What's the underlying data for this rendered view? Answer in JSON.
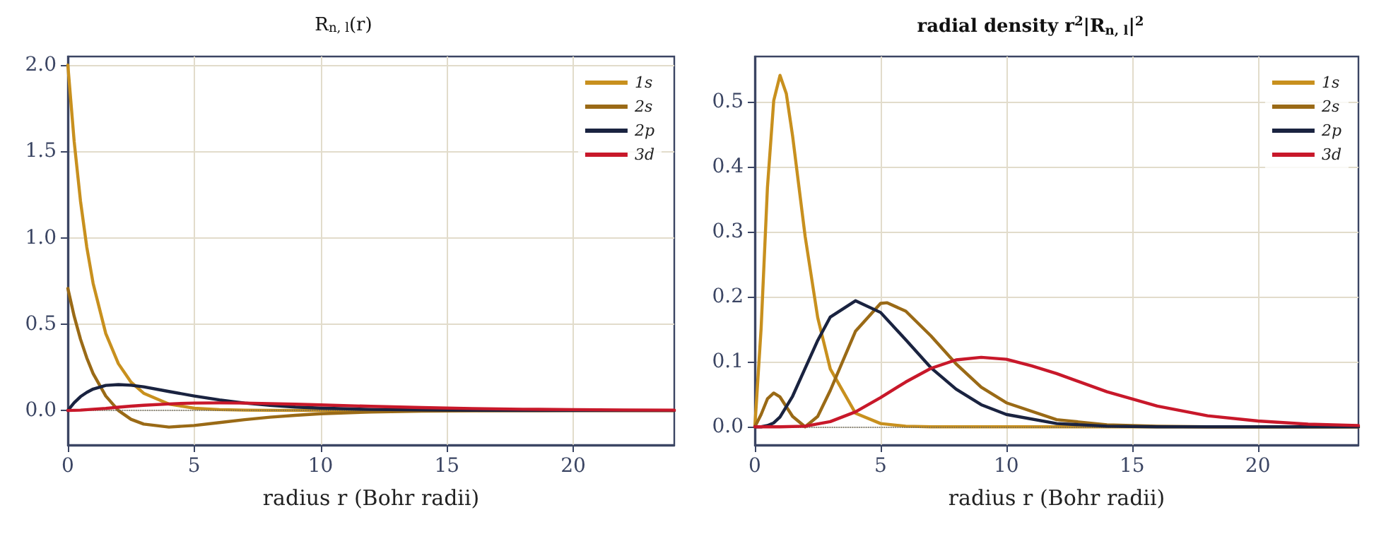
{
  "chart_data": [
    {
      "type": "line",
      "title": "R$_{n, l}$(r)",
      "xlabel": "radius r (Bohr radii)",
      "xlim": [
        0,
        24
      ],
      "xticks": [
        0,
        5,
        10,
        15,
        20
      ],
      "ylim": [
        -0.2,
        2.05
      ],
      "yticks": [
        {
          "value": 0,
          "label": "0.0"
        },
        0.5,
        {
          "value": 1,
          "label": "1.0"
        },
        1.5,
        {
          "value": 2,
          "label": "2.0"
        }
      ],
      "grid": true,
      "legend": "top right",
      "marker": "none",
      "line_style": "solid",
      "ref_lines": [
        {
          "axis": "y",
          "value": 0,
          "color": "#666666",
          "line_style": "dotted"
        }
      ],
      "series": [
        {
          "name": "1s",
          "color": "#c8901e",
          "x": [
            0,
            0.25,
            0.5,
            0.75,
            1,
            1.5,
            2,
            2.5,
            3,
            4,
            5,
            6,
            7,
            8,
            10,
            12,
            16,
            20,
            24
          ],
          "values": [
            2,
            1.558,
            1.213,
            0.945,
            0.736,
            0.446,
            0.271,
            0.164,
            0.1,
            0.037,
            0.013,
            0.005,
            0.002,
            0.001,
            0,
            0,
            0,
            0,
            0
          ]
        },
        {
          "name": "2s",
          "color": "#9a6a16",
          "x": [
            0,
            0.25,
            0.5,
            0.75,
            1,
            1.5,
            2,
            2.5,
            3,
            4,
            5,
            6,
            7,
            8,
            9,
            10,
            12,
            14,
            16,
            18,
            20,
            22,
            24
          ],
          "values": [
            0.707,
            0.546,
            0.413,
            0.304,
            0.214,
            0.084,
            0,
            -0.051,
            -0.079,
            -0.096,
            -0.087,
            -0.07,
            -0.053,
            -0.039,
            -0.028,
            -0.019,
            -0.009,
            -0.004,
            -0.002,
            -0.001,
            0,
            0,
            0
          ]
        },
        {
          "name": "2p",
          "color": "#1a2340",
          "x": [
            0,
            0.25,
            0.5,
            0.75,
            1,
            1.5,
            2,
            2.5,
            3,
            4,
            5,
            6,
            7,
            8,
            9,
            10,
            12,
            14,
            16,
            18,
            20,
            22,
            24
          ],
          "values": [
            0,
            0.045,
            0.08,
            0.105,
            0.124,
            0.145,
            0.15,
            0.146,
            0.137,
            0.11,
            0.084,
            0.061,
            0.043,
            0.03,
            0.02,
            0.014,
            0.006,
            0.003,
            0.001,
            0,
            0,
            0,
            0
          ]
        },
        {
          "name": "3d",
          "color": "#c8182a",
          "x": [
            0,
            0.5,
            1,
            1.5,
            2,
            2.5,
            3,
            4,
            5,
            6,
            7,
            8,
            9,
            10,
            12,
            14,
            16,
            18,
            20,
            22,
            24
          ],
          "values": [
            0,
            0.002,
            0.007,
            0.012,
            0.019,
            0.025,
            0.03,
            0.038,
            0.043,
            0.044,
            0.043,
            0.04,
            0.036,
            0.032,
            0.024,
            0.017,
            0.011,
            0.007,
            0.005,
            0.003,
            0.002
          ]
        }
      ]
    },
    {
      "type": "line",
      "title": "radial density r$^{2}$|R$_{n, l}$|$^{2}$",
      "xlabel": "radius r (Bohr radii)",
      "xlim": [
        0,
        24
      ],
      "xticks": [
        0,
        5,
        10,
        15,
        20
      ],
      "ylim": [
        -0.028,
        0.57
      ],
      "yticks": [
        {
          "value": 0,
          "label": "0.0"
        },
        0.1,
        0.2,
        0.3,
        0.4,
        0.5
      ],
      "grid": true,
      "legend": "top right",
      "marker": "none",
      "line_style": "solid",
      "ref_lines": [
        {
          "axis": "y",
          "value": 0,
          "color": "#666666",
          "line_style": "dotted"
        }
      ],
      "series": [
        {
          "name": "1s",
          "color": "#c8901e",
          "x": [
            0,
            0.25,
            0.5,
            0.75,
            1,
            1.25,
            1.5,
            2,
            2.5,
            3,
            4,
            5,
            6,
            7,
            8,
            10,
            12,
            16,
            20,
            24
          ],
          "values": [
            0,
            0.152,
            0.368,
            0.502,
            0.541,
            0.513,
            0.448,
            0.293,
            0.168,
            0.089,
            0.021,
            0.005,
            0.001,
            0,
            0,
            0,
            0,
            0,
            0,
            0
          ]
        },
        {
          "name": "2s",
          "color": "#9a6a16",
          "x": [
            0,
            0.25,
            0.5,
            0.75,
            1,
            1.5,
            2,
            2.5,
            3,
            4,
            5,
            5.25,
            6,
            7,
            8,
            9,
            10,
            12,
            14,
            16,
            18,
            20,
            24
          ],
          "values": [
            0,
            0.019,
            0.043,
            0.052,
            0.046,
            0.016,
            0,
            0.016,
            0.056,
            0.147,
            0.19,
            0.191,
            0.178,
            0.14,
            0.097,
            0.061,
            0.037,
            0.011,
            0.003,
            0.001,
            0,
            0,
            0
          ]
        },
        {
          "name": "2p",
          "color": "#1a2340",
          "x": [
            0,
            0.25,
            0.5,
            0.75,
            1,
            1.5,
            2,
            2.5,
            3,
            4,
            5,
            6,
            7,
            8,
            9,
            10,
            12,
            14,
            16,
            18,
            20,
            24
          ],
          "values": [
            0,
            0,
            0.002,
            0.006,
            0.015,
            0.047,
            0.09,
            0.133,
            0.169,
            0.194,
            0.176,
            0.134,
            0.091,
            0.058,
            0.034,
            0.019,
            0.005,
            0.001,
            0,
            0,
            0,
            0
          ]
        },
        {
          "name": "3d",
          "color": "#c8182a",
          "x": [
            0,
            1,
            2,
            3,
            4,
            5,
            6,
            7,
            8,
            9,
            10,
            11,
            12,
            14,
            16,
            18,
            20,
            22,
            24
          ],
          "values": [
            0,
            0,
            0.001,
            0.008,
            0.023,
            0.045,
            0.069,
            0.09,
            0.103,
            0.107,
            0.104,
            0.094,
            0.082,
            0.054,
            0.032,
            0.017,
            0.009,
            0.004,
            0.002
          ]
        }
      ]
    }
  ]
}
